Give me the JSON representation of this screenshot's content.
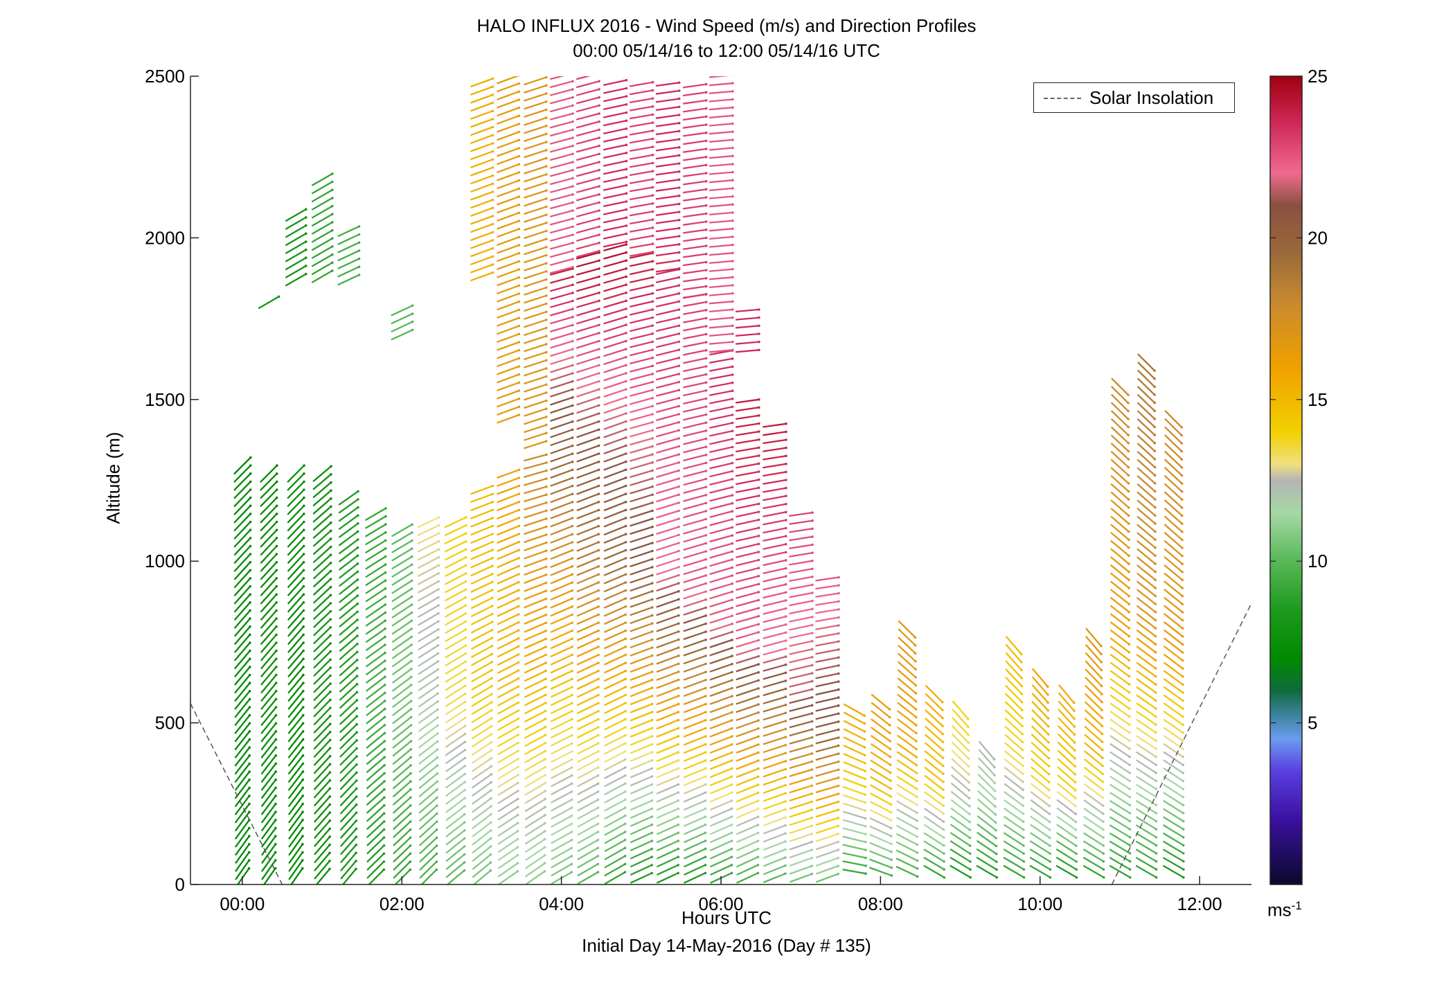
{
  "chart_data": {
    "type": "wind-barb-profile",
    "title": "HALO INFLUX 2016 - Wind Speed (m/s) and Direction Profiles",
    "subtitle": "00:00 05/14/16 to 12:00 05/14/16  UTC",
    "xlabel": "Hours UTC",
    "xlabel2": "Initial Day 14-May-2016 (Day # 135)",
    "ylabel": "Altitude (m)",
    "xlim": [
      -0.65,
      12.65
    ],
    "ylim": [
      0,
      2500
    ],
    "xticks": [
      {
        "value": 0,
        "label": "00:00"
      },
      {
        "value": 2,
        "label": "02:00"
      },
      {
        "value": 4,
        "label": "04:00"
      },
      {
        "value": 6,
        "label": "06:00"
      },
      {
        "value": 8,
        "label": "08:00"
      },
      {
        "value": 10,
        "label": "10:00"
      },
      {
        "value": 12,
        "label": "12:00"
      }
    ],
    "yticks": [
      {
        "value": 0,
        "label": "0"
      },
      {
        "value": 500,
        "label": "500"
      },
      {
        "value": 1000,
        "label": "1000"
      },
      {
        "value": 1500,
        "label": "1500"
      },
      {
        "value": 2000,
        "label": "2000"
      },
      {
        "value": 2500,
        "label": "2500"
      }
    ],
    "legend": {
      "position": "top-right",
      "entries": [
        {
          "label": "Solar Insolation",
          "style": "dashed",
          "color": "#666666"
        }
      ]
    },
    "colorbar": {
      "range": [
        0,
        25
      ],
      "unit": "ms-1",
      "ticks": [
        {
          "value": 5,
          "label": "5"
        },
        {
          "value": 10,
          "label": "10"
        },
        {
          "value": 15,
          "label": "15"
        },
        {
          "value": 20,
          "label": "20"
        },
        {
          "value": 25,
          "label": "25"
        }
      ],
      "stops": [
        {
          "v": 0,
          "color": "#0a0a2a"
        },
        {
          "v": 2,
          "color": "#3a10a0"
        },
        {
          "v": 3.5,
          "color": "#5a3ee0"
        },
        {
          "v": 4.5,
          "color": "#6a9cf0"
        },
        {
          "v": 5.5,
          "color": "#2f7a80"
        },
        {
          "v": 6,
          "color": "#0f6a3a"
        },
        {
          "v": 7,
          "color": "#008a00"
        },
        {
          "v": 8.5,
          "color": "#1d9a1d"
        },
        {
          "v": 10,
          "color": "#58b858"
        },
        {
          "v": 11.5,
          "color": "#a6d8a6"
        },
        {
          "v": 12.5,
          "color": "#b4b4b4"
        },
        {
          "v": 13,
          "color": "#f0e080"
        },
        {
          "v": 14,
          "color": "#f2d000"
        },
        {
          "v": 16,
          "color": "#f0a000"
        },
        {
          "v": 18,
          "color": "#c88a30"
        },
        {
          "v": 19.5,
          "color": "#9a6a3a"
        },
        {
          "v": 21,
          "color": "#8a5040"
        },
        {
          "v": 22,
          "color": "#f06a90"
        },
        {
          "v": 23.5,
          "color": "#d02a5a"
        },
        {
          "v": 25,
          "color": "#a00010"
        }
      ]
    },
    "solar_insolation": [
      {
        "x": -0.65,
        "y": 560
      },
      {
        "x": 0.5,
        "y": 0
      },
      {
        "x": 10.9,
        "y": 0
      },
      {
        "x": 12.65,
        "y": 870
      }
    ],
    "profiles": [
      {
        "t": 0.0,
        "ymin": 20,
        "ymax": 1300,
        "spd": [
          7,
          7,
          7
        ],
        "dir": [
          215,
          225
        ]
      },
      {
        "t": 0.33,
        "ymin": 20,
        "ymax": 1280,
        "spd": [
          7,
          7.5,
          7
        ],
        "dir": [
          215,
          225
        ]
      },
      {
        "t": 0.67,
        "ymin": 20,
        "ymax": 1280,
        "spd": [
          7,
          7,
          7.5
        ],
        "dir": [
          215,
          225
        ]
      },
      {
        "t": 1.0,
        "ymin": 20,
        "ymax": 1280,
        "spd": [
          7.5,
          8,
          7.5
        ],
        "dir": [
          220,
          230
        ]
      },
      {
        "t": 1.33,
        "ymin": 20,
        "ymax": 1200,
        "spd": [
          8,
          8.5,
          8.5
        ],
        "dir": [
          220,
          235
        ]
      },
      {
        "t": 1.67,
        "ymin": 20,
        "ymax": 1160,
        "spd": [
          8.5,
          9.5,
          9
        ],
        "dir": [
          225,
          240
        ]
      },
      {
        "t": 2.0,
        "ymin": 20,
        "ymax": 1100,
        "spd": [
          9,
          10.5,
          10
        ],
        "dir": [
          225,
          240
        ]
      },
      {
        "t": 2.33,
        "ymin": 20,
        "ymax": 1120,
        "spd": [
          9.5,
          12,
          13
        ],
        "dir": [
          225,
          245
        ]
      },
      {
        "t": 2.67,
        "ymin": 20,
        "ymax": 1140,
        "spd": [
          10,
          13.5,
          14
        ],
        "dir": [
          230,
          245
        ]
      },
      {
        "t": 3.0,
        "ymin": 20,
        "ymax": 1230,
        "spd": [
          10.5,
          14.5,
          15
        ],
        "dir": [
          230,
          250
        ]
      },
      {
        "t": 3.33,
        "ymin": 20,
        "ymax": 1280,
        "spd": [
          11,
          15,
          16
        ],
        "dir": [
          235,
          250
        ]
      },
      {
        "t": 3.67,
        "ymin": 20,
        "ymax": 1320,
        "spd": [
          11,
          15.5,
          18
        ],
        "dir": [
          235,
          255
        ]
      },
      {
        "t": 4.0,
        "ymin": 20,
        "ymax": 1900,
        "spd": [
          10.5,
          17,
          24
        ],
        "dir": [
          240,
          255
        ]
      },
      {
        "t": 4.33,
        "ymin": 20,
        "ymax": 1950,
        "spd": [
          10,
          18.5,
          24.5
        ],
        "dir": [
          240,
          255
        ]
      },
      {
        "t": 4.67,
        "ymin": 20,
        "ymax": 1980,
        "spd": [
          9,
          19.5,
          24.5
        ],
        "dir": [
          240,
          255
        ]
      },
      {
        "t": 5.0,
        "ymin": 20,
        "ymax": 1950,
        "spd": [
          8.5,
          20.5,
          24
        ],
        "dir": [
          245,
          258
        ]
      },
      {
        "t": 5.33,
        "ymin": 20,
        "ymax": 1900,
        "spd": [
          8.5,
          22,
          23.5
        ],
        "dir": [
          245,
          258
        ]
      },
      {
        "t": 5.67,
        "ymin": 20,
        "ymax": 1820,
        "spd": [
          8.5,
          22.5,
          23
        ],
        "dir": [
          245,
          260
        ]
      },
      {
        "t": 6.0,
        "ymin": 20,
        "ymax": 1650,
        "spd": [
          9,
          22.5,
          23.5
        ],
        "dir": [
          245,
          260
        ]
      },
      {
        "t": 6.33,
        "ymin": 20,
        "ymax": 1500,
        "spd": [
          9.5,
          22.5,
          24
        ],
        "dir": [
          245,
          262
        ]
      },
      {
        "t": 6.67,
        "ymin": 20,
        "ymax": 1420,
        "spd": [
          10,
          22,
          24
        ],
        "dir": [
          248,
          262
        ]
      },
      {
        "t": 7.0,
        "ymin": 20,
        "ymax": 1160,
        "spd": [
          10.5,
          21.5,
          23
        ],
        "dir": [
          250,
          262
        ]
      },
      {
        "t": 7.33,
        "ymin": 20,
        "ymax": 950,
        "spd": [
          10.5,
          20.5,
          22.5
        ],
        "dir": [
          250,
          262
        ]
      },
      {
        "t": 7.67,
        "ymin": 40,
        "ymax": 560,
        "spd": [
          9,
          14,
          16
        ],
        "dir": [
          280,
          300
        ]
      },
      {
        "t": 8.0,
        "ymin": 40,
        "ymax": 580,
        "spd": [
          9.5,
          15,
          16.5
        ],
        "dir": [
          290,
          310
        ]
      },
      {
        "t": 8.33,
        "ymin": 40,
        "ymax": 800,
        "spd": [
          9.5,
          15.5,
          17
        ],
        "dir": [
          295,
          315
        ]
      },
      {
        "t": 8.67,
        "ymin": 40,
        "ymax": 600,
        "spd": [
          9,
          14.5,
          15.5
        ],
        "dir": [
          300,
          315
        ]
      },
      {
        "t": 9.0,
        "ymin": 40,
        "ymax": 560,
        "spd": [
          8.5,
          12.5,
          14
        ],
        "dir": [
          300,
          320
        ]
      },
      {
        "t": 9.33,
        "ymin": 40,
        "ymax": 420,
        "spd": [
          8.5,
          11,
          12.5
        ],
        "dir": [
          300,
          320
        ]
      },
      {
        "t": 9.67,
        "ymin": 40,
        "ymax": 760,
        "spd": [
          9,
          13.5,
          15
        ],
        "dir": [
          300,
          320
        ]
      },
      {
        "t": 10.0,
        "ymin": 40,
        "ymax": 650,
        "spd": [
          9,
          14,
          16
        ],
        "dir": [
          300,
          320
        ]
      },
      {
        "t": 10.33,
        "ymin": 40,
        "ymax": 590,
        "spd": [
          8.5,
          14,
          15.5
        ],
        "dir": [
          300,
          320
        ]
      },
      {
        "t": 10.67,
        "ymin": 40,
        "ymax": 780,
        "spd": [
          9,
          15,
          17
        ],
        "dir": [
          300,
          320
        ]
      },
      {
        "t": 11.0,
        "ymin": 40,
        "ymax": 1550,
        "spd": [
          9,
          16,
          18
        ],
        "dir": [
          300,
          315
        ]
      },
      {
        "t": 11.33,
        "ymin": 40,
        "ymax": 1620,
        "spd": [
          9,
          17,
          19
        ],
        "dir": [
          300,
          315
        ]
      },
      {
        "t": 11.67,
        "ymin": 40,
        "ymax": 1460,
        "spd": [
          8.5,
          16.5,
          18
        ],
        "dir": [
          300,
          315
        ]
      }
    ],
    "upper_blocks": [
      {
        "t": 0.33,
        "ymin": 1800,
        "ymax": 1820,
        "spd": 8,
        "dir": 240
      },
      {
        "t": 0.67,
        "ymin": 1870,
        "ymax": 2080,
        "spd": 8,
        "dir": 240
      },
      {
        "t": 1.0,
        "ymin": 1880,
        "ymax": 2180,
        "spd": 9,
        "dir": 240
      },
      {
        "t": 1.33,
        "ymin": 1870,
        "ymax": 2040,
        "spd": 9.5,
        "dir": 245
      },
      {
        "t": 2.0,
        "ymin": 1700,
        "ymax": 1780,
        "spd": 10,
        "dir": 245
      },
      {
        "t": 3.0,
        "ymin": 1880,
        "ymax": 2500,
        "spd": 15.5,
        "dir": 250
      },
      {
        "t": 3.33,
        "ymin": 1440,
        "ymax": 2500,
        "spd": 16.5,
        "dir": 250
      },
      {
        "t": 3.67,
        "ymin": 1360,
        "ymax": 2500,
        "spd": 17,
        "dir": 252
      },
      {
        "t": 4.0,
        "ymin": 1900,
        "ymax": 2500,
        "spd": 22.5,
        "dir": 255
      },
      {
        "t": 4.33,
        "ymin": 1950,
        "ymax": 2500,
        "spd": 23,
        "dir": 255
      },
      {
        "t": 4.67,
        "ymin": 1980,
        "ymax": 2500,
        "spd": 23.5,
        "dir": 258
      },
      {
        "t": 5.0,
        "ymin": 1950,
        "ymax": 2480,
        "spd": 23,
        "dir": 260
      },
      {
        "t": 5.33,
        "ymin": 1900,
        "ymax": 2480,
        "spd": 23.5,
        "dir": 262
      },
      {
        "t": 5.67,
        "ymin": 1820,
        "ymax": 2480,
        "spd": 23,
        "dir": 262
      },
      {
        "t": 6.0,
        "ymin": 1650,
        "ymax": 2500,
        "spd": 22.5,
        "dir": 265
      },
      {
        "t": 6.33,
        "ymin": 1650,
        "ymax": 1780,
        "spd": 23.5,
        "dir": 265
      }
    ]
  }
}
